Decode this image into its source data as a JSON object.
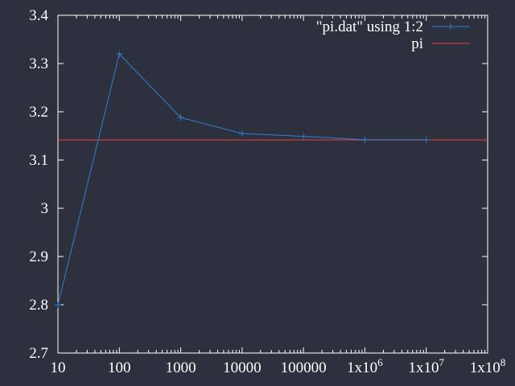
{
  "chart_data": {
    "type": "line",
    "x_scale": "log",
    "xlim": [
      10,
      100000000
    ],
    "ylim": [
      2.7,
      3.4
    ],
    "grid": false,
    "legend_position": "top-right",
    "x_ticks": [
      {
        "value": 10,
        "mantissa": "10",
        "exp": ""
      },
      {
        "value": 100,
        "mantissa": "100",
        "exp": ""
      },
      {
        "value": 1000,
        "mantissa": "1000",
        "exp": ""
      },
      {
        "value": 10000,
        "mantissa": "10000",
        "exp": ""
      },
      {
        "value": 100000,
        "mantissa": "100000",
        "exp": ""
      },
      {
        "value": 1000000,
        "mantissa": "1x10",
        "exp": "6"
      },
      {
        "value": 10000000,
        "mantissa": "1x10",
        "exp": "7"
      },
      {
        "value": 100000000,
        "mantissa": "1x10",
        "exp": "8"
      }
    ],
    "y_ticks": [
      "2.7",
      "2.8",
      "2.9",
      "3",
      "3.1",
      "3.2",
      "3.3",
      "3.4"
    ],
    "series": [
      {
        "name": "\"pi.dat\" using 1:2",
        "color": "#2f7ed8",
        "marker": "plus",
        "x": [
          10,
          100,
          1000,
          10000,
          100000,
          1000000,
          10000000
        ],
        "y": [
          2.8,
          3.32,
          3.188,
          3.155,
          3.149,
          3.142,
          3.142
        ]
      },
      {
        "name": "pi",
        "color": "#e8403a",
        "marker": "none",
        "constant": 3.14159
      }
    ]
  },
  "colors": {
    "background": "#2c313d",
    "axes": "#ffffff"
  }
}
